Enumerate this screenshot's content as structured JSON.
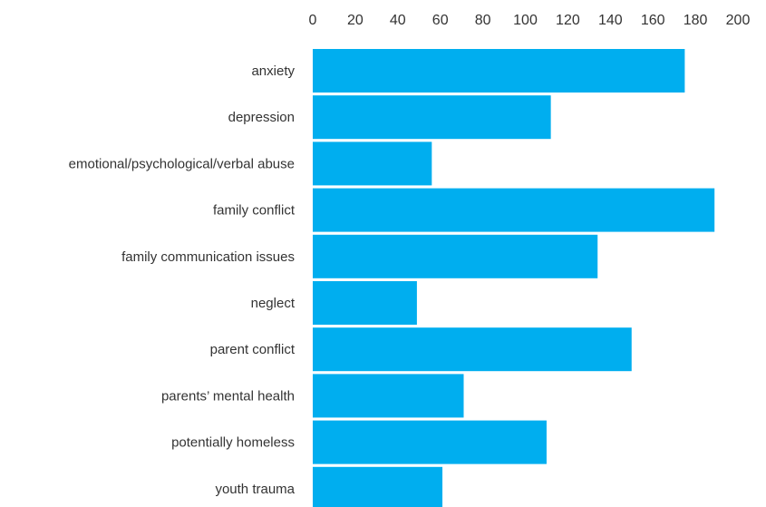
{
  "chart_data": {
    "type": "bar",
    "orientation": "horizontal",
    "categories": [
      "anxiety",
      "depression",
      "emotional/psychological/verbal abuse",
      "family conflict",
      "family communication issues",
      "neglect",
      "parent conflict",
      "parents’ mental health",
      "potentially homeless",
      "youth trauma"
    ],
    "values": [
      175,
      112,
      56,
      189,
      134,
      49,
      150,
      71,
      110,
      61
    ],
    "xlim": [
      0,
      200
    ],
    "x_ticks": [
      "0",
      "20",
      "40",
      "60",
      "80",
      "100",
      "120",
      "140",
      "160",
      "180",
      "200"
    ],
    "axis_position": "top",
    "grid": false,
    "bar_color": "#00AEEF",
    "title": "",
    "xlabel": "",
    "ylabel": ""
  }
}
